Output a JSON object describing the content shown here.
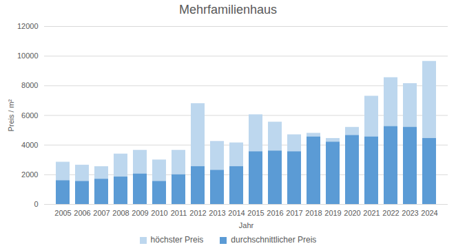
{
  "chart_data": {
    "type": "bar",
    "title": "Mehrfamilienhaus",
    "x_label": "Jahr",
    "y_label": "Preis / m²",
    "categories": [
      "2005",
      "2006",
      "2007",
      "2008",
      "2009",
      "2010",
      "2011",
      "2012",
      "2013",
      "2014",
      "2015",
      "2016",
      "2017",
      "2018",
      "2019",
      "2020",
      "2021",
      "2022",
      "2023",
      "2024"
    ],
    "series": [
      {
        "name": "höchster Preis",
        "color": "#bdd7ee",
        "values": [
          2850,
          2650,
          2550,
          3400,
          3650,
          3000,
          3650,
          6800,
          4250,
          4150,
          6050,
          5550,
          4700,
          4800,
          4450,
          5200,
          7300,
          8550,
          8150,
          9650
        ]
      },
      {
        "name": "durchschnittlicher Preis",
        "color": "#5b9bd5",
        "values": [
          1600,
          1550,
          1700,
          1850,
          2050,
          1550,
          2000,
          2550,
          2300,
          2550,
          3550,
          3600,
          3550,
          4550,
          4200,
          4650,
          4550,
          5250,
          5200,
          4450
        ]
      }
    ],
    "stacked": false,
    "ylim": [
      0,
      12000
    ],
    "yticks": [
      0,
      2000,
      4000,
      6000,
      8000,
      10000,
      12000
    ],
    "grid": true,
    "legend": "bottom"
  }
}
